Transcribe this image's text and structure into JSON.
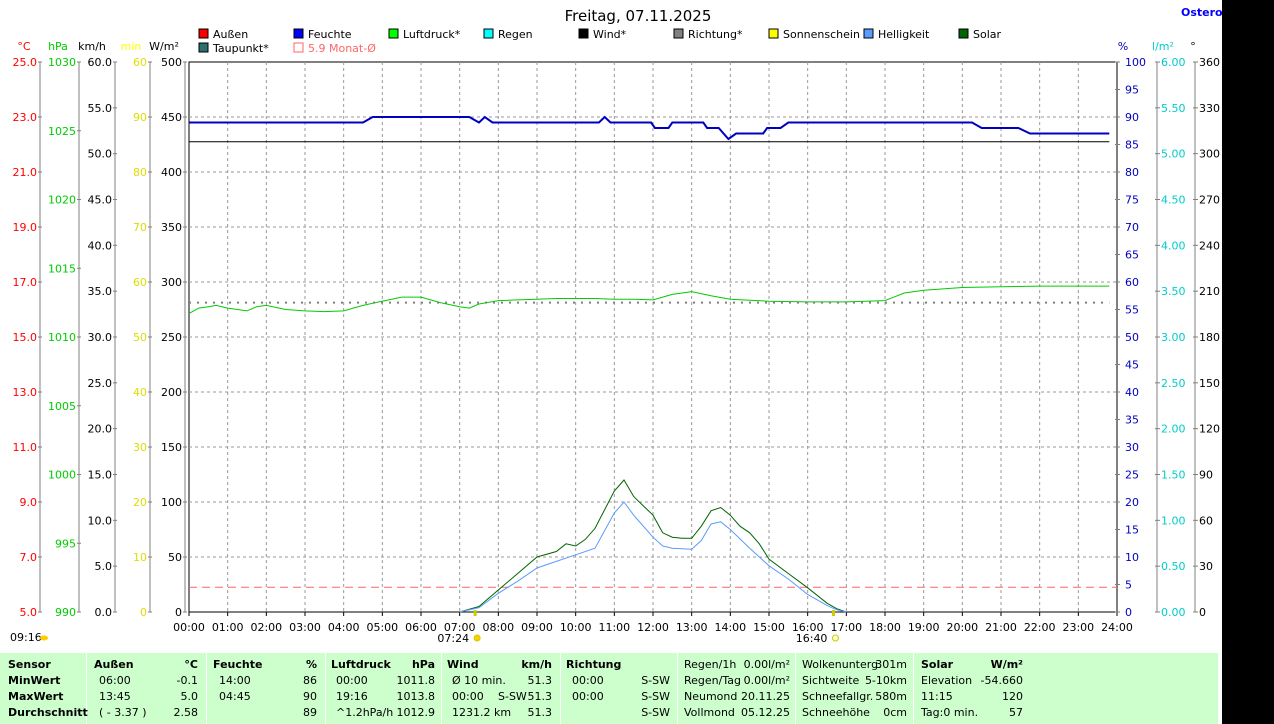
{
  "chart_data": {
    "type": "line",
    "title": "Freitag, 07.11.2025",
    "station": "Osterod",
    "x_ticks": [
      "00:00",
      "01:00",
      "02:00",
      "03:00",
      "04:00",
      "05:00",
      "06:00",
      "07:00",
      "08:00",
      "09:00",
      "10:00",
      "11:00",
      "12:00",
      "13:00",
      "14:00",
      "15:00",
      "16:00",
      "17:00",
      "18:00",
      "19:00",
      "20:00",
      "21:00",
      "22:00",
      "23:00",
      "24:00"
    ],
    "sunrise": "07:24",
    "sunset": "16:40",
    "left_axes": [
      {
        "unit": "°C",
        "color": "#ff0000",
        "ticks": [
          "25.0",
          "23.0",
          "21.0",
          "19.0",
          "17.0",
          "15.0",
          "13.0",
          "11.0",
          "9.0",
          "7.0",
          "5.0"
        ]
      },
      {
        "unit": "hPa",
        "color": "#00cc00",
        "ticks": [
          "1030",
          "1025",
          "1020",
          "1015",
          "1010",
          "1005",
          "1000",
          "995",
          "990"
        ]
      },
      {
        "unit": "km/h",
        "color": "#000000",
        "ticks": [
          "60.0",
          "55.0",
          "50.0",
          "45.0",
          "40.0",
          "35.0",
          "30.0",
          "25.0",
          "20.0",
          "15.0",
          "10.0",
          "5.0",
          "0.0"
        ]
      },
      {
        "unit": "min",
        "color": "#ffff00",
        "ticks": [
          "60",
          "90",
          "80",
          "70",
          "60",
          "50",
          "40",
          "30",
          "20",
          "10",
          "0"
        ]
      },
      {
        "unit": "W/m²",
        "color": "#000000",
        "ticks": [
          "500",
          "450",
          "400",
          "350",
          "300",
          "250",
          "200",
          "150",
          "100",
          "50",
          "0"
        ]
      }
    ],
    "right_axes": [
      {
        "unit": "%",
        "color": "#0000c0",
        "ticks": [
          "100",
          "95",
          "90",
          "85",
          "80",
          "75",
          "70",
          "65",
          "60",
          "55",
          "50",
          "45",
          "40",
          "35",
          "30",
          "25",
          "20",
          "15",
          "10",
          "5",
          "0"
        ]
      },
      {
        "unit": "l/m²",
        "color": "#00cccc",
        "ticks": [
          "6.00",
          "5.50",
          "5.00",
          "4.50",
          "4.00",
          "3.50",
          "3.00",
          "2.50",
          "2.00",
          "1.50",
          "1.00",
          "0.50",
          "0.00"
        ]
      },
      {
        "unit": "°",
        "color": "#000000",
        "ticks": [
          "360",
          "330",
          "300",
          "270",
          "240",
          "210",
          "180",
          "150",
          "120",
          "90",
          "60",
          "30",
          "0"
        ]
      }
    ],
    "legend": [
      {
        "label": "Außen",
        "color": "#ff0000"
      },
      {
        "label": "Feuchte",
        "color": "#0000ff"
      },
      {
        "label": "Luftdruck*",
        "color": "#00ff00"
      },
      {
        "label": "Regen",
        "color": "#00ffff"
      },
      {
        "label": "Wind*",
        "color": "#000000"
      },
      {
        "label": "Richtung*",
        "color": "#808080"
      },
      {
        "label": "Sonnenschein",
        "color": "#ffff00"
      },
      {
        "label": "Helligkeit",
        "color": "#5b9bff"
      },
      {
        "label": "Solar",
        "color": "#006400"
      },
      {
        "label": "Taupunkt*",
        "color": "#2f6f6f"
      },
      {
        "label": "5.9 Monat-Ø",
        "color": "#ff6666",
        "outline": true
      }
    ],
    "series": [
      {
        "name": "Feuchte",
        "unit": "%",
        "color": "#0000c0",
        "x": [
          0,
          4.5,
          4.75,
          7.25,
          7.5,
          7.65,
          7.85,
          10.6,
          10.75,
          10.9,
          11.95,
          12.05,
          12.4,
          12.5,
          13.3,
          13.4,
          13.7,
          13.95,
          14.15,
          14.85,
          14.95,
          15.3,
          15.5,
          20.25,
          20.5,
          21.45,
          21.75,
          23.8
        ],
        "y": [
          89,
          89,
          90,
          90,
          89,
          90,
          89,
          89,
          90,
          89,
          89,
          88,
          88,
          89,
          89,
          88,
          88,
          86,
          87,
          87,
          88,
          88,
          89,
          89,
          88,
          88,
          87,
          87
        ]
      },
      {
        "name": "Wind",
        "unit": "km/h",
        "color": "#000000",
        "x": [
          0,
          23.8
        ],
        "y": [
          51.3,
          51.3
        ]
      },
      {
        "name": "Luftdruck",
        "unit": "hPa",
        "color": "#00cc00",
        "x": [
          0,
          0.25,
          0.5,
          0.7,
          1.0,
          1.5,
          1.75,
          2.0,
          2.5,
          3.0,
          3.5,
          4.0,
          4.5,
          5.0,
          5.5,
          6.0,
          6.5,
          7.0,
          7.25,
          7.5,
          8.0,
          8.5,
          9.0,
          9.5,
          10.0,
          10.5,
          11.0,
          11.5,
          12.0,
          12.5,
          13.0,
          13.5,
          14.0,
          15.0,
          16.0,
          17.0,
          18.0,
          18.5,
          19.0,
          20.0,
          21.0,
          22.0,
          23.0,
          23.8
        ],
        "y": [
          1011.7,
          1012.1,
          1012.2,
          1012.3,
          1012.1,
          1011.9,
          1012.2,
          1012.3,
          1012.0,
          1011.9,
          1011.85,
          1011.9,
          1012.3,
          1012.6,
          1012.9,
          1012.9,
          1012.5,
          1012.2,
          1012.1,
          1012.4,
          1012.65,
          1012.7,
          1012.75,
          1012.8,
          1012.8,
          1012.8,
          1012.75,
          1012.75,
          1012.7,
          1013.1,
          1013.3,
          1013.0,
          1012.75,
          1012.6,
          1012.55,
          1012.55,
          1012.65,
          1013.2,
          1013.4,
          1013.6,
          1013.65,
          1013.7,
          1013.7,
          1013.7
        ]
      },
      {
        "name": "Richtung",
        "unit": "°",
        "color": "#808080",
        "x": [
          0,
          23.8
        ],
        "y": [
          202.5,
          202.5
        ]
      },
      {
        "name": "Solar",
        "unit": "W/m²",
        "color": "#006400",
        "x": [
          7.0,
          7.5,
          8.0,
          8.5,
          9.0,
          9.5,
          9.75,
          10.0,
          10.25,
          10.5,
          11.0,
          11.25,
          11.5,
          12.0,
          12.25,
          12.5,
          12.75,
          13.0,
          13.25,
          13.5,
          13.75,
          14.0,
          14.25,
          14.5,
          14.75,
          15.0,
          15.5,
          16.0,
          16.5,
          16.75,
          17.0
        ],
        "y": [
          0,
          5,
          20,
          35,
          50,
          55,
          62,
          60,
          66,
          76,
          110,
          120,
          105,
          88,
          72,
          68,
          67,
          67,
          78,
          92,
          95,
          88,
          78,
          72,
          62,
          48,
          35,
          22,
          8,
          3,
          0
        ]
      },
      {
        "name": "Helligkeit",
        "unit": "W/m²",
        "color": "#5b9bff",
        "x": [
          7.0,
          7.5,
          8.0,
          8.5,
          9.0,
          9.5,
          10.0,
          10.5,
          11.0,
          11.25,
          11.5,
          12.0,
          12.25,
          12.5,
          13.0,
          13.25,
          13.5,
          13.75,
          14.0,
          14.5,
          15.0,
          15.5,
          16.0,
          16.5,
          16.75,
          17.0
        ],
        "y": [
          0,
          4,
          17,
          28,
          40,
          46,
          52,
          58,
          90,
          100,
          88,
          68,
          60,
          58,
          57,
          65,
          80,
          82,
          75,
          58,
          42,
          30,
          16,
          6,
          2,
          0
        ]
      }
    ],
    "reference_line": {
      "label": "5.9 Monat-Ø",
      "unit": "°C",
      "value": 5.9,
      "color": "#ff6666"
    },
    "ylim_temp": [
      5,
      25
    ],
    "ylim_pressure": [
      990,
      1030
    ],
    "ylim_wind": [
      0,
      60
    ],
    "ylim_solar": [
      0,
      500
    ],
    "ylim_humidity": [
      0,
      100
    ],
    "xlim": [
      0,
      24
    ],
    "grid": true
  },
  "stats": {
    "sensor": {
      "header": "Sensor",
      "rows": [
        "MinWert",
        "MaxWert",
        "Durchschnitt"
      ]
    },
    "aussen": {
      "header": "Außen",
      "unit": "°C",
      "rows": [
        [
          "06:00",
          "-0.1"
        ],
        [
          "13:45",
          "5.0"
        ],
        [
          "( - 3.37 )",
          "2.58"
        ]
      ]
    },
    "feuchte": {
      "header": "Feuchte",
      "unit": "%",
      "rows": [
        [
          "14:00",
          "86"
        ],
        [
          "04:45",
          "90"
        ],
        [
          "",
          "89"
        ]
      ]
    },
    "luftdruck": {
      "header": "Luftdruck",
      "unit": "hPa",
      "rows": [
        [
          "00:00",
          "1011.8"
        ],
        [
          "19:16",
          "1013.8"
        ],
        [
          "^1.2hPa/h",
          "1012.9"
        ]
      ]
    },
    "wind": {
      "header": "Wind",
      "unit": "km/h",
      "rows": [
        [
          "Ø 10 min.",
          "",
          "51.3"
        ],
        [
          "00:00",
          "S-SW",
          "51.3"
        ],
        [
          "1231.2 km",
          "",
          "51.3"
        ]
      ]
    },
    "richtung": {
      "header": "Richtung",
      "rows": [
        [
          "00:00",
          "S-SW"
        ],
        [
          "00:00",
          "S-SW"
        ],
        [
          "",
          "S-SW"
        ]
      ]
    },
    "regen": {
      "rows": [
        [
          "Regen/1h",
          "0.00l/m²"
        ],
        [
          "Regen/Tag",
          "0.00l/m²"
        ],
        [
          "Neumond",
          "20.11.25"
        ],
        [
          "Vollmond",
          "05.12.25"
        ]
      ]
    },
    "wolken": {
      "rows": [
        [
          "Wolkenunterg.",
          "301m"
        ],
        [
          "Sichtweite",
          "5-10km"
        ],
        [
          "Schneefallgr.",
          "580m"
        ],
        [
          "Schneehöhe",
          "0cm"
        ]
      ]
    },
    "solar": {
      "header": "Solar",
      "unit": "W/m²",
      "rows": [
        [
          "Elevation",
          "-54.660"
        ],
        [
          "11:15",
          "120"
        ],
        [
          "Tag:0 min.",
          "57"
        ]
      ]
    }
  },
  "time_marker": "09:16"
}
